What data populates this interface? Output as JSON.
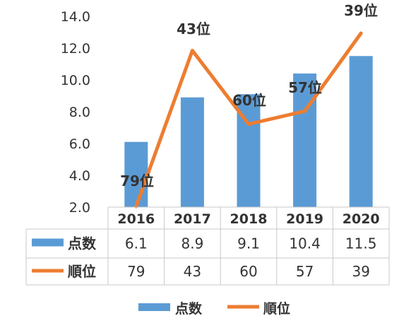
{
  "chart_data": {
    "type": "bar",
    "categories": [
      "2016",
      "2017",
      "2018",
      "2019",
      "2020"
    ],
    "y_ticks": [
      "2.0",
      "4.0",
      "6.0",
      "8.0",
      "10.0",
      "12.0",
      "14.0"
    ],
    "ylim": [
      2.0,
      14.0
    ],
    "grid": false,
    "legend_position": "bottom",
    "series": [
      {
        "name": "点数",
        "kind": "bar",
        "color": "#5B9BD5",
        "values": [
          6.1,
          8.9,
          9.1,
          10.4,
          11.5
        ],
        "table_values": [
          "6.1",
          "8.9",
          "9.1",
          "10.4",
          "11.5"
        ]
      },
      {
        "name": "順位",
        "kind": "line",
        "color": "#ED7D31",
        "axis": "secondary",
        "axis_reversed": true,
        "values": [
          79,
          43,
          60,
          57,
          39
        ],
        "table_values": [
          "79",
          "43",
          "60",
          "57",
          "39"
        ],
        "data_labels": [
          "79位",
          "43位",
          "60位",
          "57位",
          "39位"
        ]
      }
    ]
  }
}
